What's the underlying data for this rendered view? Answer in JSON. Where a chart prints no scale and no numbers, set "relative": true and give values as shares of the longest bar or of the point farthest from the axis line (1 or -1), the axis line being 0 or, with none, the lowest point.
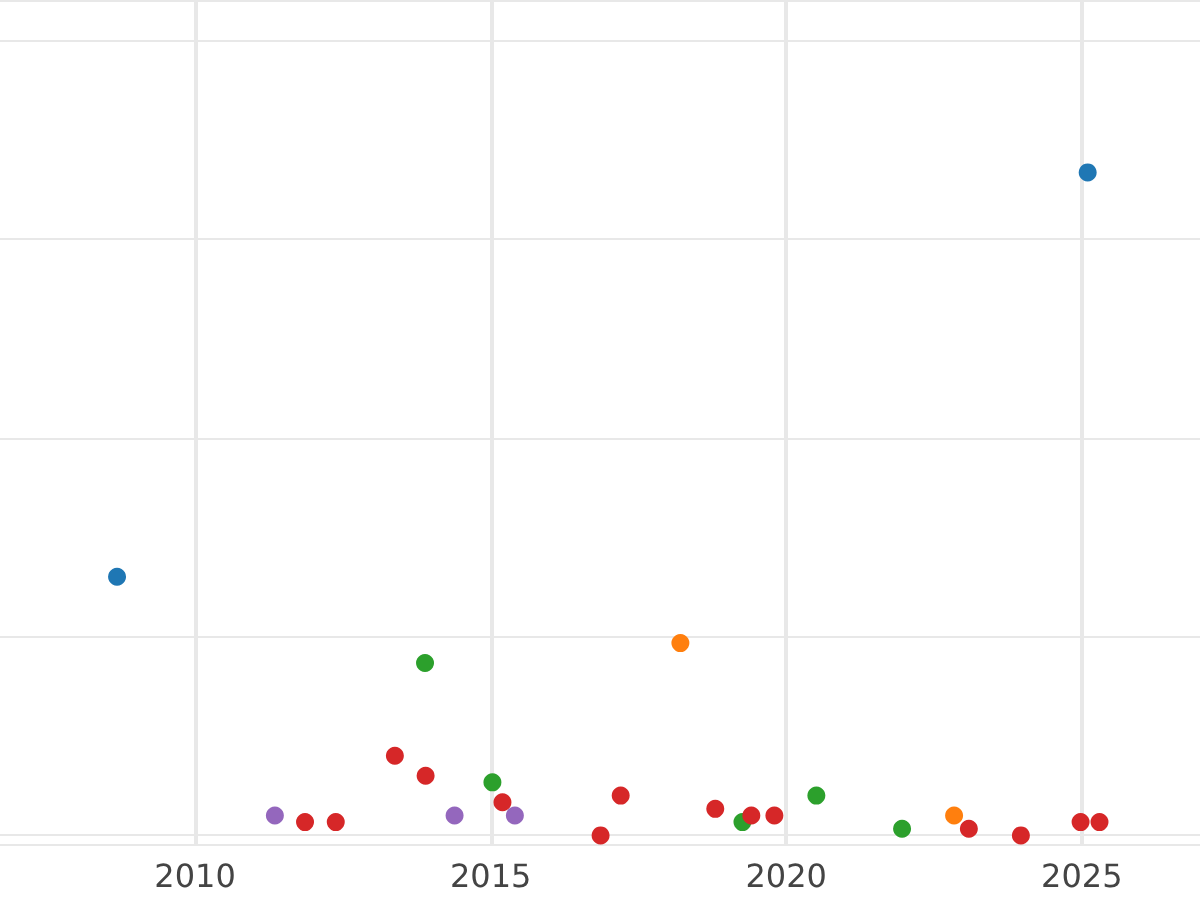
{
  "chart_data": {
    "type": "scatter",
    "relative": true,
    "marker": "circle",
    "grid": true,
    "xlim": [
      2006.7,
      2027.0
    ],
    "xticks": [
      2010,
      2015,
      2020,
      2025
    ],
    "series": [
      {
        "color": "#1f77b4",
        "x": [
          2008.68,
          2025.1
        ],
        "values": [
          0.39,
          1.0
        ]
      },
      {
        "color": "#2ca02c",
        "x": [
          2013.89,
          2015.03,
          2019.26,
          2020.51,
          2021.96
        ],
        "values": [
          0.26,
          0.08,
          0.02,
          0.06,
          0.01
        ]
      },
      {
        "color": "#ff7f0e",
        "x": [
          2018.21,
          2022.84
        ],
        "values": [
          0.29,
          0.03
        ]
      },
      {
        "color": "#9467bd",
        "x": [
          2011.35,
          2014.39,
          2015.41
        ],
        "values": [
          0.03,
          0.03,
          0.03
        ]
      },
      {
        "color": "#d62728",
        "x": [
          2011.86,
          2012.38,
          2013.38,
          2013.9,
          2015.2,
          2016.86,
          2017.2,
          2018.8,
          2019.41,
          2019.8,
          2023.09,
          2023.97,
          2024.98,
          2025.3
        ],
        "values": [
          0.02,
          0.02,
          0.12,
          0.09,
          0.05,
          0.0,
          0.06,
          0.04,
          0.03,
          0.03,
          0.01,
          0.0,
          0.02,
          0.02
        ]
      }
    ]
  }
}
